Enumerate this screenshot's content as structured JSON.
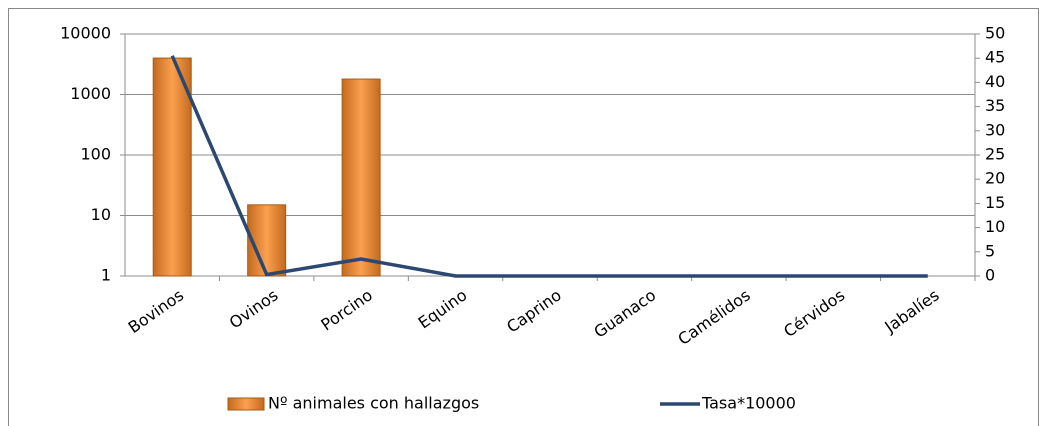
{
  "chart_data": {
    "type": "bar",
    "categories": [
      "Bovinos",
      "Ovinos",
      "Porcino",
      "Equino",
      "Caprino",
      "Guanaco",
      "Camélidos",
      "Cérvidos",
      "Jabalíes"
    ],
    "series": [
      {
        "name": "Nº animales con hallazgos",
        "type": "bar",
        "color": "#f79646",
        "values": [
          4000,
          15,
          1800,
          null,
          null,
          null,
          null,
          null,
          null
        ]
      },
      {
        "name": "Tasa*10000",
        "type": "line",
        "axis": "y2",
        "color": "#2c4770",
        "values": [
          45.5,
          0.3,
          3.5,
          0,
          0,
          0,
          0,
          0,
          0
        ]
      }
    ],
    "ylim": [
      1,
      10000
    ],
    "yticks": [
      1,
      10,
      100,
      1000,
      10000
    ],
    "ylog": true,
    "y2lim": [
      0,
      50
    ],
    "y2ticks": [
      0,
      5,
      10,
      15,
      20,
      25,
      30,
      35,
      40,
      45,
      50
    ],
    "grid": true,
    "legend": "bottom"
  }
}
